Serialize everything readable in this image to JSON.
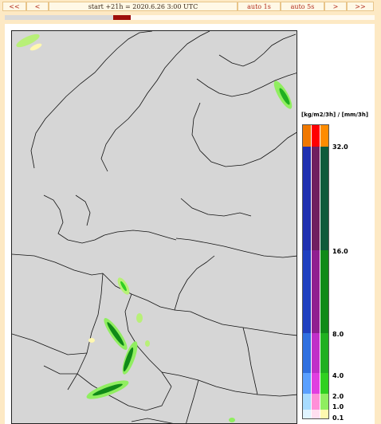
{
  "nav": {
    "first_label": "<<",
    "prev_label": "<",
    "title": "start +21h  =  2020.6.26 3:00 UTC",
    "auto1_label": "auto 1s",
    "auto5_label": "auto 5s",
    "next_label": ">",
    "last_label": ">>"
  },
  "progress": {
    "fraction": 0.34
  },
  "legend": {
    "title": "[kg/m2/3h] / [mm/3h]",
    "ticks": [
      "32.0",
      "16.0",
      "8.0",
      "4.0",
      "2.0",
      "1.0",
      "0.1"
    ],
    "colors": {
      "col1": [
        "#e0f4ff",
        "#a8dcff",
        "#5aa0ff",
        "#3070e0",
        "#2040c0",
        "#2030b0",
        "#f07800"
      ],
      "col2": [
        "#ffe0f0",
        "#ff90d8",
        "#e040e0",
        "#c030c8",
        "#902090",
        "#702060",
        "#ff0000"
      ],
      "col3": [
        "#fff8b0",
        "#90ee60",
        "#30d020",
        "#20b020",
        "#108a18",
        "#0f5a3a",
        "#ff8c00"
      ]
    }
  }
}
